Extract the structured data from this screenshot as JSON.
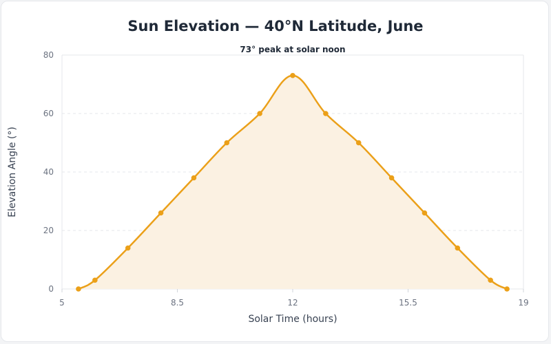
{
  "chart_data": {
    "type": "line",
    "title": "Sun Elevation — 40°N Latitude, June",
    "xlabel": "Solar Time (hours)",
    "ylabel": "Elevation Angle (°)",
    "xlim": [
      5,
      19
    ],
    "ylim": [
      0,
      80
    ],
    "x_ticks": [
      "5",
      "8.5",
      "12",
      "15.5",
      "19"
    ],
    "y_ticks": [
      "0",
      "20",
      "40",
      "60",
      "80"
    ],
    "grid": true,
    "annotation": "73° peak at solar noon",
    "colors": {
      "line": "#eba019",
      "fill": "#fbf1e2"
    },
    "series": [
      {
        "x": [
          5.5,
          6,
          7,
          8,
          9,
          10,
          11,
          12,
          13,
          14,
          15,
          16,
          17,
          18,
          18.5
        ],
        "values": [
          0,
          3,
          14,
          26,
          38,
          50,
          60,
          73,
          60,
          50,
          38,
          26,
          14,
          3,
          0
        ]
      }
    ]
  }
}
